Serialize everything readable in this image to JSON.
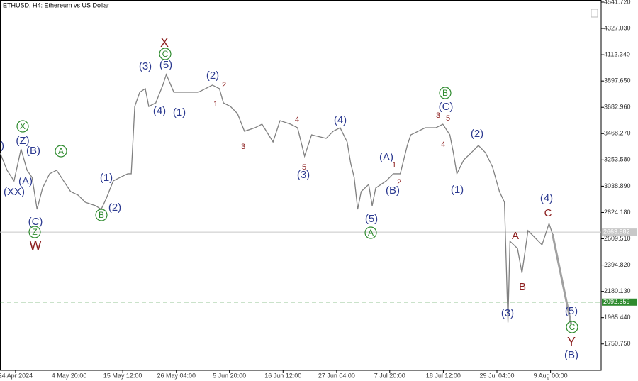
{
  "chart_data": {
    "type": "line",
    "title": "ETHUSD, H4:  Ethereum vs US Dollar",
    "color": "#808080",
    "x": [
      0,
      1.4,
      2.8,
      4.2,
      5.4,
      6.4,
      7.4,
      8.5,
      9.9,
      11.3,
      12.7,
      14.1,
      15.6,
      17,
      19.1,
      20.2,
      21.2,
      22.6,
      24,
      25.5,
      26.2,
      26.9,
      27.9,
      29,
      29.7,
      31.1,
      32.5,
      33.2,
      34.7,
      36.8,
      39.6,
      42.4,
      43.8,
      44.6,
      46,
      47.4,
      48.8,
      50.9,
      52.3,
      54.5,
      55.9,
      58,
      59.4,
      60.8,
      62.2,
      65.1,
      66.5,
      67.9,
      69.3,
      70,
      70.7,
      71.4,
      72.1,
      73.6,
      74.3,
      75,
      77.1,
      78.5,
      79.9,
      81.3,
      82,
      84.9,
      87,
      88.4,
      89.8,
      90.5,
      91.2,
      92.6,
      94.1,
      95.5,
      96.9,
      98.3,
      99.7,
      100.7,
      101.4,
      101.8,
      103.3,
      104.2,
      105.4,
      106.8,
      108.2,
      109.6,
      110.3
    ],
    "values": [
      3313,
      3169,
      3082,
      3342,
      3169,
      3111,
      2850,
      3024,
      3140,
      3169,
      3082,
      2995,
      2966,
      2908,
      2879,
      2850,
      2937,
      3082,
      3111,
      3140,
      3140,
      3690,
      3806,
      3835,
      3690,
      3719,
      3864,
      3951,
      3806,
      3806,
      3806,
      3864,
      3835,
      3719,
      3690,
      3632,
      3487,
      3516,
      3545,
      3400,
      3574,
      3545,
      3516,
      3284,
      3458,
      3429,
      3487,
      3516,
      3400,
      3227,
      3111,
      2850,
      2995,
      3053,
      2879,
      3024,
      3082,
      3140,
      3140,
      3371,
      3458,
      3516,
      3516,
      3545,
      3458,
      3313,
      3140,
      3255,
      3313,
      3371,
      3313,
      3198,
      2995,
      2908,
      1926,
      2589,
      2531,
      2329,
      2676,
      2618,
      2560,
      2734,
      2647
    ],
    "projection": {
      "x": [
        110.3,
        114
      ],
      "values": [
        2647,
        1914
      ],
      "color": "#a0a0a0"
    },
    "xlim": [
      0,
      120
    ],
    "ylim": [
      1535,
      4559
    ],
    "xticks": [
      {
        "value": 3.1,
        "label": "24 Apr 2024"
      },
      {
        "value": 13.8,
        "label": "4 May 20:00"
      },
      {
        "value": 24.5,
        "label": "15 May 12:00"
      },
      {
        "value": 35.2,
        "label": "26 May 04:00"
      },
      {
        "value": 45.8,
        "label": "5 Jun 20:00"
      },
      {
        "value": 56.5,
        "label": "16 Jun 12:00"
      },
      {
        "value": 67.2,
        "label": "27 Jun 04:00"
      },
      {
        "value": 77.8,
        "label": "7 Jul 20:00"
      },
      {
        "value": 88.5,
        "label": "18 Jul 12:00"
      },
      {
        "value": 99.2,
        "label": "29 Jul 04:00"
      },
      {
        "value": 109.9,
        "label": "9 Aug 00:00"
      }
    ],
    "yticks": [
      {
        "value": 1750.75,
        "label": "1750.750"
      },
      {
        "value": 1965.44,
        "label": "1965.440"
      },
      {
        "value": 2180.13,
        "label": "2180.130"
      },
      {
        "value": 2394.82,
        "label": "2394.820"
      },
      {
        "value": 2609.51,
        "label": "2609.510"
      },
      {
        "value": 2824.18,
        "label": "2824.180"
      },
      {
        "value": 3038.89,
        "label": "3038.890"
      },
      {
        "value": 3253.58,
        "label": "3253.580"
      },
      {
        "value": 3468.27,
        "label": "3468.270"
      },
      {
        "value": 3682.96,
        "label": "3682.960"
      },
      {
        "value": 3897.65,
        "label": "3897.650"
      },
      {
        "value": 4112.34,
        "label": "4112.340"
      },
      {
        "value": 4327.03,
        "label": "4327.030"
      },
      {
        "value": 4541.72,
        "label": "4541.720"
      }
    ],
    "price_lines": [
      {
        "value": 2663.982,
        "color": "#c8c8c8",
        "dashed": false
      },
      {
        "value": 2092.359,
        "color": "#2e8b2e",
        "dashed": true
      }
    ],
    "annotations": [
      {
        "text": "(Y)",
        "color": "#2b3990",
        "circled": false
      },
      {
        "text": "X",
        "color": "#2e8b2e",
        "circled": true
      },
      {
        "text": "(Z)",
        "color": "#2b3990",
        "circled": false
      },
      {
        "text": "(B)",
        "color": "#2b3990",
        "circled": false
      },
      {
        "text": "(A)",
        "color": "#2b3990",
        "circled": false
      },
      {
        "text": "(XX)",
        "color": "#2b3990",
        "circled": false
      },
      {
        "text": "A",
        "color": "#2e8b2e",
        "circled": true
      },
      {
        "text": "(C)",
        "color": "#2b3990",
        "circled": false
      },
      {
        "text": "Z",
        "color": "#2e8b2e",
        "circled": true
      },
      {
        "text": "W",
        "color": "#8b1c1c",
        "circled": false
      },
      {
        "text": "(1)",
        "color": "#2b3990",
        "circled": false
      },
      {
        "text": "(2)",
        "color": "#2b3990",
        "circled": false
      },
      {
        "text": "B",
        "color": "#2e8b2e",
        "circled": true
      },
      {
        "text": "X",
        "color": "#8b1c1c",
        "circled": false
      },
      {
        "text": "C",
        "color": "#2e8b2e",
        "circled": true
      },
      {
        "text": "(5)",
        "color": "#2b3990",
        "circled": false
      },
      {
        "text": "(3)",
        "color": "#2b3990",
        "circled": false
      },
      {
        "text": "(4)",
        "color": "#2b3990",
        "circled": false
      },
      {
        "text": "(1)",
        "color": "#2b3990",
        "circled": false
      },
      {
        "text": "(2)",
        "color": "#2b3990",
        "circled": false
      },
      {
        "text": "2",
        "color": "#8b1c1c",
        "circled": false
      },
      {
        "text": "1",
        "color": "#8b1c1c",
        "circled": false
      },
      {
        "text": "3",
        "color": "#8b1c1c",
        "circled": false
      },
      {
        "text": "4",
        "color": "#8b1c1c",
        "circled": false
      },
      {
        "text": "5",
        "color": "#8b1c1c",
        "circled": false
      },
      {
        "text": "(3)",
        "color": "#2b3990",
        "circled": false
      },
      {
        "text": "(4)",
        "color": "#2b3990",
        "circled": false
      },
      {
        "text": "(A)",
        "color": "#2b3990",
        "circled": false
      },
      {
        "text": "1",
        "color": "#8b1c1c",
        "circled": false
      },
      {
        "text": "2",
        "color": "#8b1c1c",
        "circled": false
      },
      {
        "text": "(B)",
        "color": "#2b3990",
        "circled": false
      },
      {
        "text": "(5)",
        "color": "#2b3990",
        "circled": false
      },
      {
        "text": "A",
        "color": "#2e8b2e",
        "circled": true
      },
      {
        "text": "B",
        "color": "#2e8b2e",
        "circled": true
      },
      {
        "text": "(C)",
        "color": "#2b3990",
        "circled": false
      },
      {
        "text": "3",
        "color": "#8b1c1c",
        "circled": false
      },
      {
        "text": "5",
        "color": "#8b1c1c",
        "circled": false
      },
      {
        "text": "4",
        "color": "#8b1c1c",
        "circled": false
      },
      {
        "text": "(2)",
        "color": "#2b3990",
        "circled": false
      },
      {
        "text": "(1)",
        "color": "#2b3990",
        "circled": false
      },
      {
        "text": "(4)",
        "color": "#2b3990",
        "circled": false
      },
      {
        "text": "C",
        "color": "#8b1c1c",
        "circled": false
      },
      {
        "text": "A",
        "color": "#8b1c1c",
        "circled": false
      },
      {
        "text": "B",
        "color": "#8b1c1c",
        "circled": false
      },
      {
        "text": "(3)",
        "color": "#2b3990",
        "circled": false
      },
      {
        "text": "(5)",
        "color": "#2b3990",
        "circled": false
      },
      {
        "text": "C",
        "color": "#2e8b2e",
        "circled": true
      },
      {
        "text": "Y",
        "color": "#8b1c1c",
        "circled": false
      },
      {
        "text": "(B)",
        "color": "#2b3990",
        "circled": false
      }
    ]
  }
}
